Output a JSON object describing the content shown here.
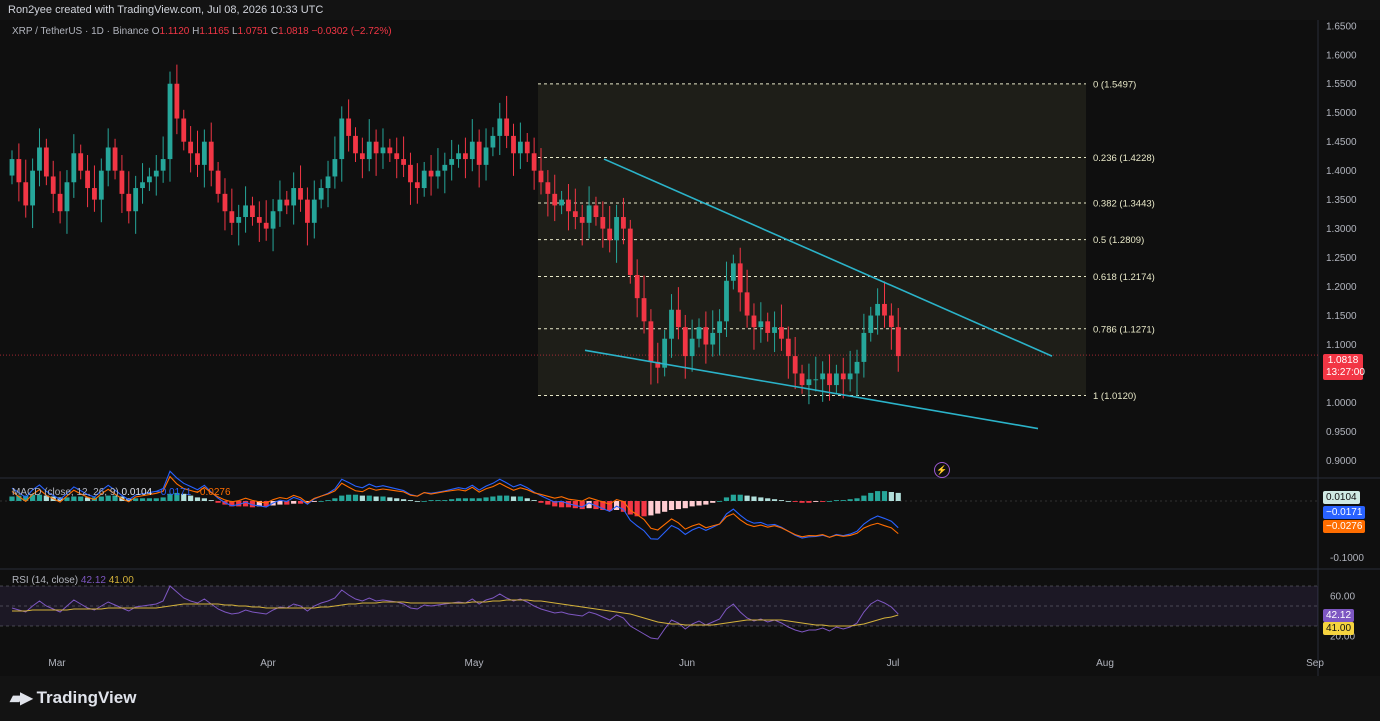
{
  "caption": "Ron2yee created with TradingView.com, Jul 08, 2026 10:33 UTC",
  "brand": "TradingView",
  "legend_main": {
    "symbol": "XRP / TetherUS · 1D · Binance",
    "o_label": "O",
    "o": "1.1120",
    "h_label": "H",
    "h": "1.1165",
    "l_label": "L",
    "l": "1.0751",
    "c_label": "C",
    "c": "1.0818",
    "chg": "−0.0302 (−2.72%)"
  },
  "legend_macd": {
    "label": "MACD (close, 12, 26, 9)",
    "v1": "0.0104",
    "v2": "−0.0171",
    "v3": "−0.0276"
  },
  "legend_rsi": {
    "label": "RSI (14, close)",
    "v1": "42.12",
    "v2": "41.00"
  },
  "price_badge": {
    "price": "1.0818",
    "countdown": "13:27:00"
  },
  "macd_badges": [
    "0.0104",
    "−0.0171",
    "−0.0276"
  ],
  "rsi_badges": [
    "42.12",
    "41.00"
  ],
  "colors": {
    "up": "#26a69a",
    "down": "#f23645",
    "fib": "#e8e8c8",
    "trend": "#2bb3c9",
    "macd": "#2962ff",
    "signal": "#ff6d00",
    "rsi": "#7e57c2",
    "rsi_ma": "#d4b23a"
  },
  "chart_data": {
    "type": "candlestick",
    "symbol": "XRP / TetherUS",
    "price_axis": {
      "ticks": [
        "1.6500",
        "1.6000",
        "1.5500",
        "1.5000",
        "1.4500",
        "1.4000",
        "1.3500",
        "1.3000",
        "1.2500",
        "1.2000",
        "1.1500",
        "1.1000",
        "1.0500",
        "1.0000",
        "0.9500",
        "0.9000"
      ],
      "range": [
        0.88,
        1.66
      ]
    },
    "time_axis": {
      "labels": [
        "Mar",
        "Apr",
        "May",
        "Jun",
        "Jul",
        "Aug",
        "Sep"
      ]
    },
    "fibonacci": [
      {
        "label": "0 (1.5497)",
        "level": 1.5497
      },
      {
        "label": "0.236 (1.4228)",
        "level": 1.4228
      },
      {
        "label": "0.382 (1.3443)",
        "level": 1.3443
      },
      {
        "label": "0.5 (1.2809)",
        "level": 1.2809
      },
      {
        "label": "0.618 (1.2174)",
        "level": 1.2174
      },
      {
        "label": "0.786 (1.1271)",
        "level": 1.1271
      },
      {
        "label": "1 (1.0120)",
        "level": 1.012
      }
    ],
    "trendlines": [
      {
        "from": [
          "May 25",
          1.42
        ],
        "to": [
          "Jul 21",
          1.08
        ]
      },
      {
        "from": [
          "May 19",
          1.09
        ],
        "to": [
          "Jul 20",
          0.955
        ]
      }
    ],
    "closes": [
      1.42,
      1.38,
      1.34,
      1.4,
      1.44,
      1.39,
      1.36,
      1.33,
      1.38,
      1.43,
      1.4,
      1.37,
      1.35,
      1.4,
      1.44,
      1.4,
      1.36,
      1.33,
      1.37,
      1.38,
      1.39,
      1.4,
      1.42,
      1.55,
      1.49,
      1.45,
      1.43,
      1.41,
      1.45,
      1.4,
      1.36,
      1.33,
      1.31,
      1.32,
      1.34,
      1.32,
      1.31,
      1.3,
      1.33,
      1.35,
      1.34,
      1.37,
      1.35,
      1.31,
      1.35,
      1.37,
      1.39,
      1.42,
      1.49,
      1.46,
      1.43,
      1.42,
      1.45,
      1.43,
      1.44,
      1.43,
      1.42,
      1.41,
      1.38,
      1.37,
      1.4,
      1.39,
      1.4,
      1.41,
      1.42,
      1.43,
      1.42,
      1.45,
      1.41,
      1.44,
      1.46,
      1.49,
      1.46,
      1.43,
      1.45,
      1.43,
      1.4,
      1.38,
      1.36,
      1.34,
      1.35,
      1.33,
      1.32,
      1.31,
      1.34,
      1.32,
      1.3,
      1.28,
      1.32,
      1.3,
      1.22,
      1.18,
      1.14,
      1.07,
      1.06,
      1.11,
      1.16,
      1.13,
      1.08,
      1.11,
      1.13,
      1.1,
      1.12,
      1.14,
      1.21,
      1.24,
      1.19,
      1.15,
      1.13,
      1.14,
      1.12,
      1.13,
      1.11,
      1.08,
      1.05,
      1.03,
      1.04,
      1.04,
      1.05,
      1.03,
      1.05,
      1.04,
      1.05,
      1.07,
      1.12,
      1.15,
      1.17,
      1.15,
      1.13,
      1.08
    ],
    "macd_histogram": [
      0.005,
      0.006,
      0.006,
      0.007,
      0.007,
      0.006,
      0.005,
      0.004,
      0.004,
      0.005,
      0.005,
      0.004,
      0.004,
      0.005,
      0.006,
      0.006,
      0.005,
      0.003,
      0.003,
      0.003,
      0.003,
      0.003,
      0.004,
      0.008,
      0.009,
      0.008,
      0.006,
      0.004,
      0.003,
      0.001,
      -0.002,
      -0.004,
      -0.006,
      -0.006,
      -0.006,
      -0.007,
      -0.006,
      -0.006,
      -0.005,
      -0.004,
      -0.004,
      -0.003,
      -0.003,
      -0.002,
      -0.001,
      0.0,
      0.001,
      0.003,
      0.006,
      0.007,
      0.007,
      0.006,
      0.006,
      0.005,
      0.005,
      0.004,
      0.003,
      0.002,
      0.001,
      0.0,
      0.0,
      0.001,
      0.001,
      0.001,
      0.002,
      0.003,
      0.003,
      0.003,
      0.003,
      0.004,
      0.005,
      0.006,
      0.006,
      0.005,
      0.005,
      0.003,
      0.001,
      -0.002,
      -0.004,
      -0.006,
      -0.007,
      -0.007,
      -0.008,
      -0.009,
      -0.008,
      -0.009,
      -0.01,
      -0.011,
      -0.01,
      -0.012,
      -0.015,
      -0.017,
      -0.017,
      -0.016,
      -0.014,
      -0.012,
      -0.01,
      -0.009,
      -0.008,
      -0.006,
      -0.005,
      -0.004,
      -0.002,
      0.0,
      0.004,
      0.007,
      0.007,
      0.006,
      0.005,
      0.004,
      0.003,
      0.002,
      0.001,
      0.0,
      -0.001,
      -0.002,
      -0.002,
      -0.001,
      -0.001,
      0.0,
      0.001,
      0.001,
      0.002,
      0.003,
      0.006,
      0.009,
      0.011,
      0.011,
      0.01,
      0.009
    ],
    "macd_axis": {
      "ticks": [
        "-0.1000"
      ]
    },
    "rsi_axis": {
      "ticks": [
        "60.00",
        "20.00"
      ]
    },
    "rsi": [
      48,
      46,
      44,
      50,
      55,
      50,
      47,
      44,
      50,
      56,
      52,
      48,
      46,
      50,
      54,
      51,
      48,
      45,
      49,
      50,
      51,
      52,
      55,
      70,
      64,
      58,
      55,
      53,
      57,
      52,
      47,
      44,
      42,
      43,
      46,
      44,
      43,
      42,
      46,
      49,
      48,
      52,
      50,
      45,
      50,
      53,
      55,
      58,
      66,
      61,
      57,
      55,
      58,
      55,
      56,
      55,
      54,
      52,
      48,
      47,
      51,
      50,
      51,
      52,
      53,
      54,
      53,
      57,
      52,
      56,
      58,
      62,
      58,
      55,
      57,
      54,
      50,
      47,
      45,
      43,
      44,
      42,
      41,
      40,
      44,
      42,
      39,
      36,
      41,
      38,
      30,
      26,
      22,
      18,
      17,
      27,
      36,
      33,
      27,
      32,
      35,
      31,
      34,
      37,
      47,
      52,
      44,
      38,
      35,
      37,
      34,
      36,
      33,
      29,
      26,
      24,
      26,
      26,
      28,
      25,
      29,
      27,
      29,
      33,
      44,
      52,
      56,
      53,
      49,
      42
    ],
    "rsi_ma": [
      45,
      45,
      45,
      46,
      46,
      46,
      46,
      46,
      46,
      47,
      47,
      47,
      47,
      47,
      48,
      48,
      48,
      48,
      48,
      48,
      48,
      48,
      49,
      50,
      51,
      52,
      52,
      52,
      52,
      52,
      52,
      51,
      51,
      50,
      50,
      49,
      49,
      48,
      48,
      48,
      48,
      48,
      48,
      48,
      48,
      49,
      49,
      50,
      51,
      52,
      52,
      53,
      53,
      53,
      54,
      54,
      54,
      54,
      53,
      53,
      53,
      53,
      53,
      53,
      53,
      53,
      53,
      54,
      54,
      54,
      55,
      55,
      56,
      56,
      56,
      56,
      55,
      55,
      54,
      53,
      52,
      51,
      50,
      49,
      48,
      47,
      46,
      45,
      44,
      43,
      42,
      40,
      38,
      36,
      34,
      33,
      32,
      32,
      31,
      31,
      31,
      31,
      31,
      32,
      33,
      34,
      35,
      36,
      36,
      36,
      36,
      36,
      36,
      35,
      34,
      33,
      32,
      31,
      31,
      30,
      30,
      30,
      30,
      31,
      32,
      34,
      36,
      38,
      39,
      41
    ]
  }
}
